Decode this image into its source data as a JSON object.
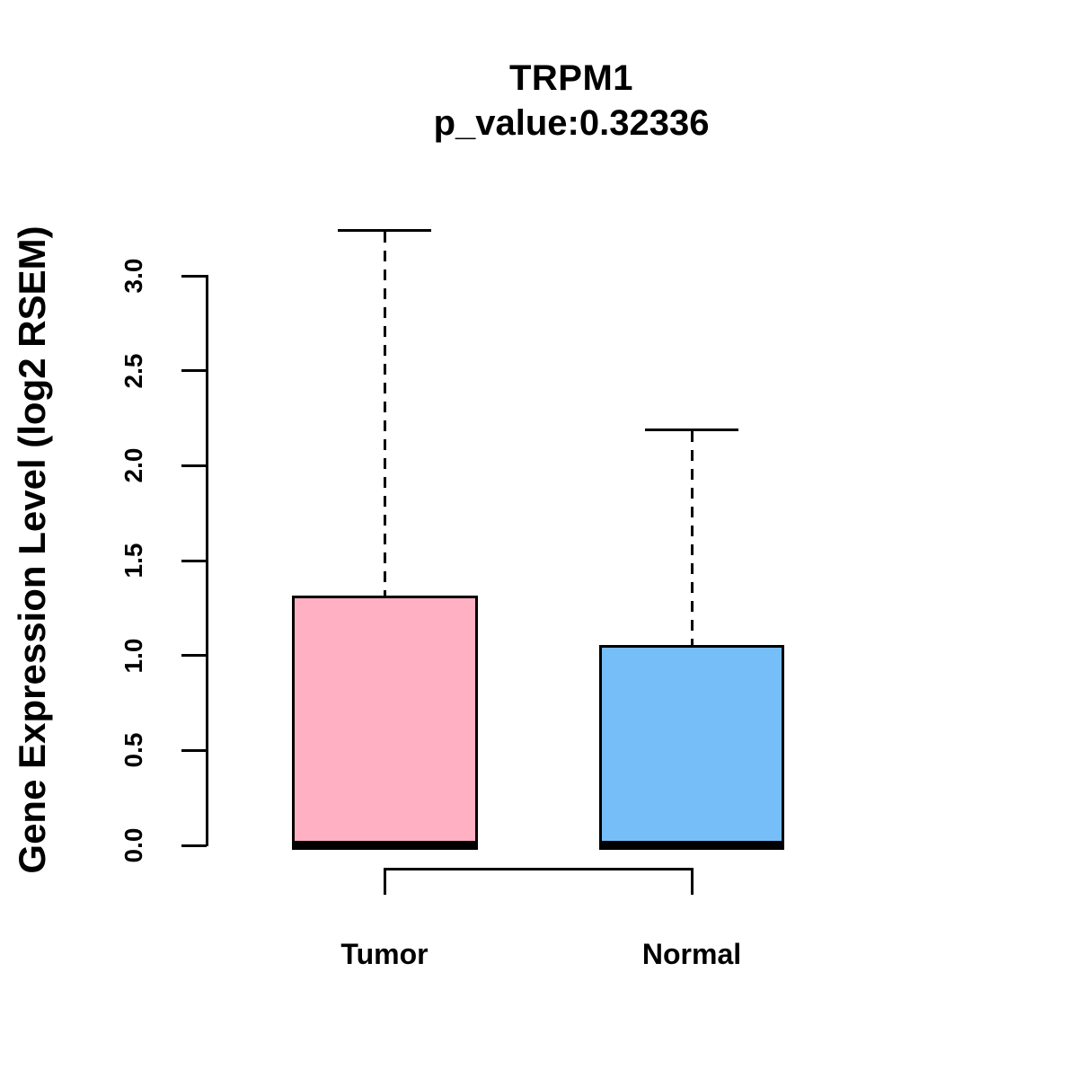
{
  "figure": {
    "background": "#FFFFFF",
    "axis_color": "#000000"
  },
  "chart_data": {
    "type": "boxplot",
    "title": "TRPM1",
    "subtitle": "p_value:0.32336",
    "ylabel": "Gene Expression Level (log2 RSEM)",
    "xlabel": "",
    "ylim": [
      0.0,
      3.3
    ],
    "ytick_labels": [
      "0.0",
      "0.5",
      "1.0",
      "1.5",
      "2.0",
      "2.5",
      "3.0"
    ],
    "ytick_values": [
      0.0,
      0.5,
      1.0,
      1.5,
      2.0,
      2.5,
      3.0
    ],
    "grid": false,
    "legend": null,
    "whisker_style": "dashed",
    "groups": [
      {
        "label": "Tumor",
        "fill_color": "#FFB0C3",
        "whisker_high": 3.24,
        "q3": 1.31,
        "median": 0.0,
        "q1": 0.0,
        "whisker_low": 0.0
      },
      {
        "label": "Normal",
        "fill_color": "#75BEF8",
        "whisker_high": 2.19,
        "q3": 1.05,
        "median": 0.0,
        "q1": 0.0,
        "whisker_low": 0.0
      }
    ],
    "comparison_bracket": {
      "between": [
        "Tumor",
        "Normal"
      ]
    }
  }
}
